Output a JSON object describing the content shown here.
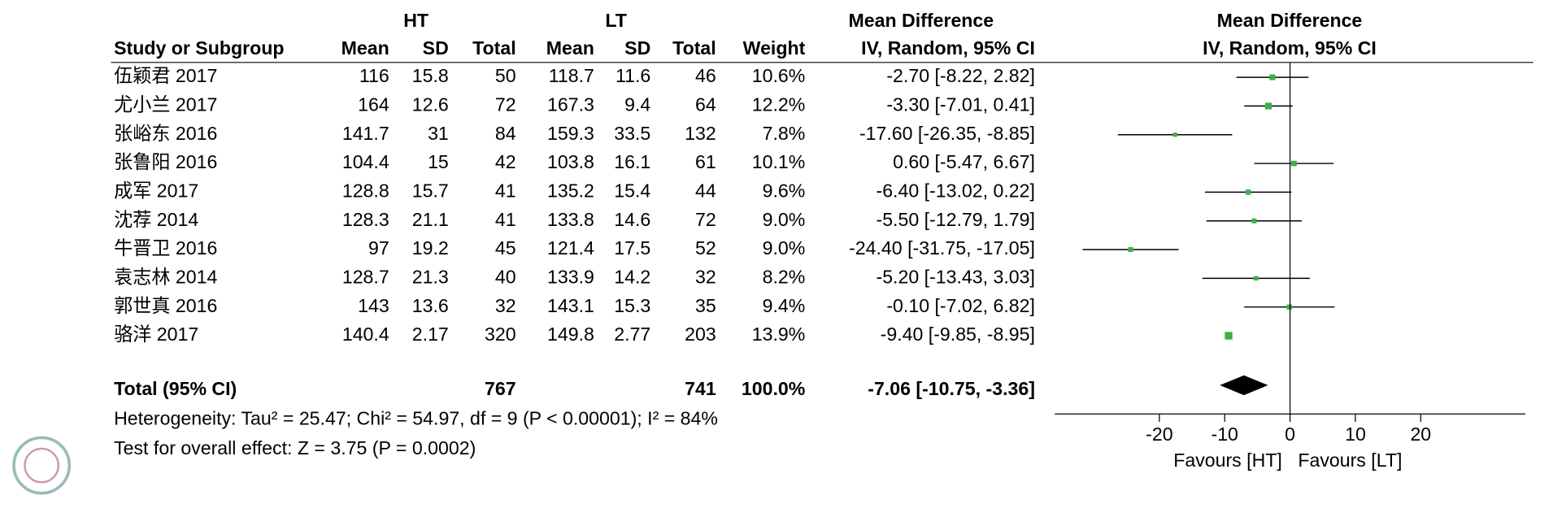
{
  "table": {
    "group_headers": [
      "HT",
      "LT"
    ],
    "columns": [
      "Study or Subgroup",
      "Mean",
      "SD",
      "Total",
      "Mean",
      "SD",
      "Total",
      "Weight",
      "IV, Random, 95% CI"
    ],
    "rows": [
      [
        "116",
        "15.8",
        "50",
        "118.7",
        "11.6",
        "46",
        "10.6%"
      ],
      [
        "164",
        "12.6",
        "72",
        "167.3",
        "9.4",
        "64",
        "12.2%"
      ],
      [
        "141.7",
        "31",
        "84",
        "159.3",
        "33.5",
        "132",
        "7.8%"
      ],
      [
        "104.4",
        "15",
        "42",
        "103.8",
        "16.1",
        "61",
        "10.1%"
      ],
      [
        "128.8",
        "15.7",
        "41",
        "135.2",
        "15.4",
        "44",
        "9.6%"
      ],
      [
        "128.3",
        "21.1",
        "41",
        "133.8",
        "14.6",
        "72",
        "9.0%"
      ],
      [
        "97",
        "19.2",
        "45",
        "121.4",
        "17.5",
        "52",
        "9.0%"
      ],
      [
        "128.7",
        "21.3",
        "40",
        "133.9",
        "14.2",
        "32",
        "8.2%"
      ],
      [
        "143",
        "13.6",
        "32",
        "143.1",
        "15.3",
        "35",
        "9.4%"
      ],
      [
        "140.4",
        "2.17",
        "320",
        "149.8",
        "2.77",
        "203",
        "13.9%"
      ]
    ],
    "total_row": [
      "767",
      "741",
      "100.0%"
    ],
    "heterogeneity": "Heterogeneity: Tau² = 25.47; Chi² = 54.97, df = 9 (P < 0.00001); I² = 84%",
    "overall_effect": "Test for overall effect: Z = 3.75 (P = 0.0002)"
  },
  "chart_data": {
    "type": "forest",
    "title": "Mean Difference",
    "subtitle": "IV, Random, 95% CI",
    "categories": [
      "伍颖君 2017",
      "尤小兰 2017",
      "张峪东 2016",
      "张鲁阳 2016",
      "成军 2017",
      "沈荐 2014",
      "牛晋卫 2016",
      "袁志林 2014",
      "郭世真 2016",
      "骆洋 2017"
    ],
    "values": [
      -2.7,
      -3.3,
      -17.6,
      0.6,
      -6.4,
      -5.5,
      -24.4,
      -5.2,
      -0.1,
      -9.4
    ],
    "ci_low": [
      -8.22,
      -7.01,
      -26.35,
      -5.47,
      -13.02,
      -12.79,
      -31.75,
      -13.43,
      -7.02,
      -9.85
    ],
    "ci_high": [
      2.82,
      0.41,
      -8.85,
      6.67,
      0.22,
      1.79,
      -17.05,
      3.03,
      6.82,
      -8.95
    ],
    "weights": [
      10.6,
      12.2,
      7.8,
      10.1,
      9.6,
      9.0,
      9.0,
      8.2,
      9.4,
      13.9
    ],
    "value_labels": [
      "-2.70 [-8.22, 2.82]",
      "-3.30 [-7.01, 0.41]",
      "-17.60 [-26.35, -8.85]",
      "0.60 [-5.47, 6.67]",
      "-6.40 [-13.02, 0.22]",
      "-5.50 [-12.79, 1.79]",
      "-24.40 [-31.75, -17.05]",
      "-5.20 [-13.43, 3.03]",
      "-0.10 [-7.02, 6.82]",
      "-9.40 [-9.85, -8.95]"
    ],
    "total": {
      "label": "Total (95% CI)",
      "value": -7.06,
      "ci_low": -10.75,
      "ci_high": -3.36,
      "value_label": "-7.06 [-10.75, -3.36]"
    },
    "xlim": [
      -36,
      36
    ],
    "xticks": [
      -20,
      -10,
      0,
      10,
      20
    ],
    "favours": [
      "Favours [HT]",
      "Favours [LT]"
    ],
    "color": "#3cb043"
  }
}
